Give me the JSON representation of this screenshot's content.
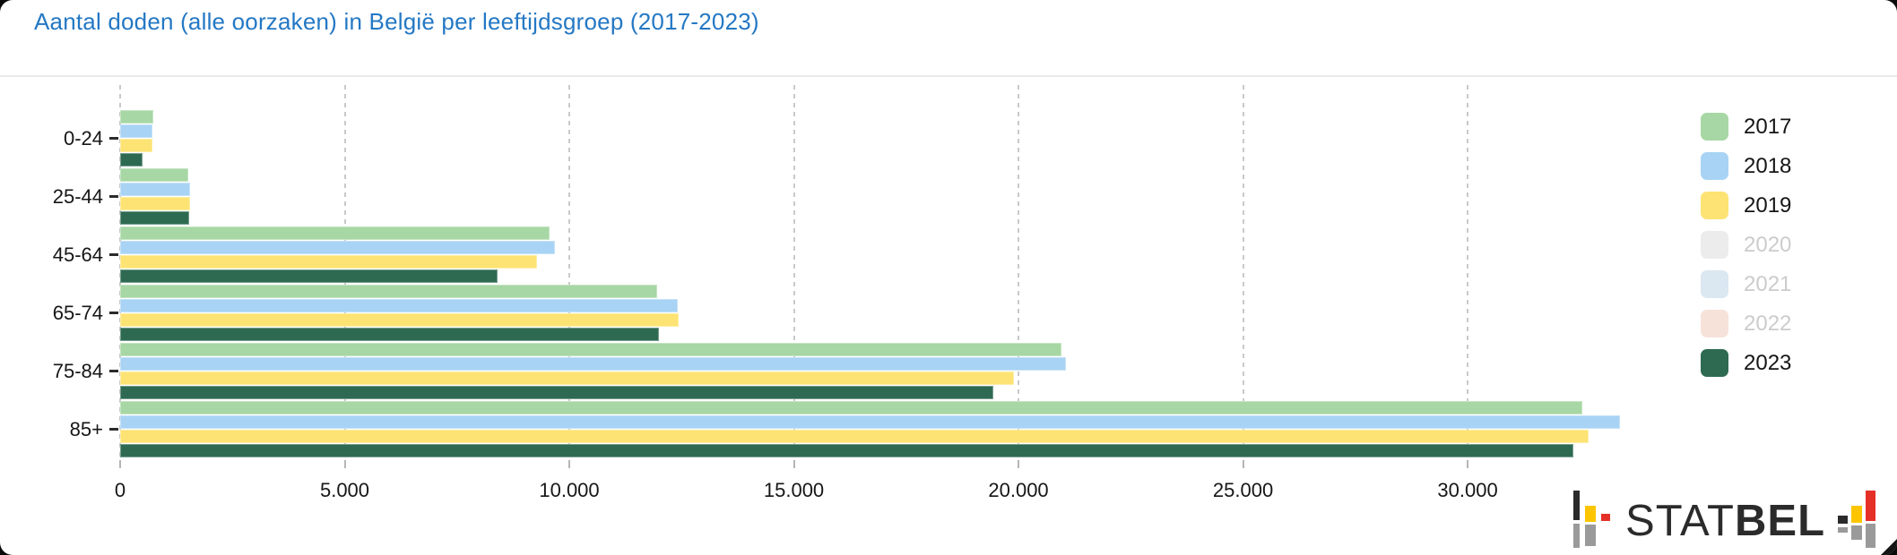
{
  "title": "Aantal doden (alle oorzaken) in België per leeftijdsgroep (2017-2023)",
  "colors": {
    "title": "#2478c4",
    "grid": "#c9c9c9",
    "text": "#111111",
    "divider": "#e9e9e9",
    "legend_disabled_text": "#cccccc",
    "logo_black": "#2b2b2b",
    "logo_yellow": "#fdc500",
    "logo_red": "#e53027",
    "logo_gray": "#9a9a9a"
  },
  "chart_data": {
    "type": "bar",
    "orientation": "horizontal",
    "title": "Aantal doden (alle oorzaken) in België per leeftijdsgroep (2017-2023)",
    "xlabel": "",
    "ylabel": "",
    "grid": "dashed-vertical",
    "legend_position": "right",
    "categories": [
      "0-24",
      "25-44",
      "45-64",
      "65-74",
      "75-84",
      "85+"
    ],
    "series": [
      {
        "name": "2017",
        "color": "#a7d7a4",
        "enabled": true,
        "values": [
          730,
          1520,
          9570,
          11950,
          20950,
          32550
        ]
      },
      {
        "name": "2018",
        "color": "#a8d3f4",
        "enabled": true,
        "values": [
          710,
          1560,
          9690,
          12420,
          21050,
          33400
        ]
      },
      {
        "name": "2019",
        "color": "#fce374",
        "enabled": true,
        "values": [
          720,
          1560,
          9280,
          12430,
          19900,
          32700
        ]
      },
      {
        "name": "2020",
        "color": "#ececec",
        "enabled": false
      },
      {
        "name": "2021",
        "color": "#dbe7f1",
        "enabled": false
      },
      {
        "name": "2022",
        "color": "#f7e2d9",
        "enabled": false
      },
      {
        "name": "2023",
        "color": "#2e6a52",
        "enabled": true,
        "values": [
          490,
          1530,
          8410,
          11990,
          19450,
          32350
        ]
      }
    ],
    "axis": {
      "max": 34250,
      "tick_step": 5000,
      "tick_labels": [
        "0",
        "5.000",
        "10.000",
        "15.000",
        "20.000",
        "25.000",
        "30.000"
      ]
    }
  },
  "logo": {
    "text_regular": "STAT",
    "text_bold": "BEL"
  }
}
